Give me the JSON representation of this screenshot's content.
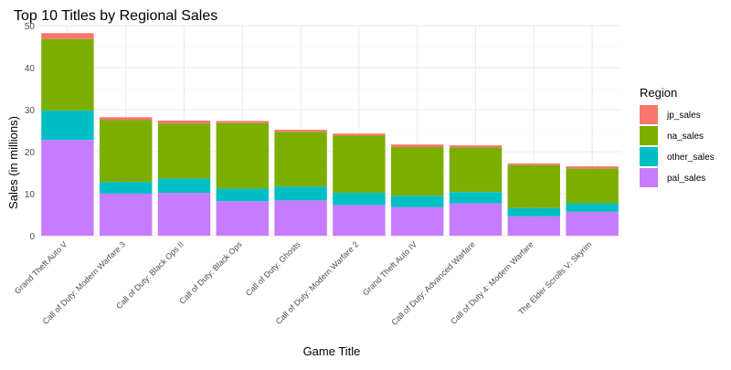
{
  "chart_data": {
    "type": "bar",
    "stacked": true,
    "title": "Top 10 Titles by Regional Sales",
    "xlabel": "Game Title",
    "ylabel": "Sales (in millions)",
    "ylim": [
      0,
      50
    ],
    "yticks": [
      0,
      10,
      20,
      30,
      40,
      50
    ],
    "grid": true,
    "legend_title": "Region",
    "legend_position": "right",
    "categories": [
      "Grand Theft Auto V",
      "Call of Duty: Modern Warfare 3",
      "Call of Duty: Black Ops II",
      "Call of Duty: Black Ops",
      "Call of Duty: Ghosts",
      "Call of Duty: Modern Warfare 2",
      "Grand Theft Auto IV",
      "Call of Duty: Advanced Warfare",
      "Call of Duty 4: Modern Warfare",
      "The Elder Scrolls V: Skyrim"
    ],
    "series": [
      {
        "name": "pal_sales",
        "color": "#C77CFF",
        "values": [
          22.8,
          10.0,
          10.2,
          8.2,
          8.4,
          7.3,
          6.8,
          7.7,
          4.6,
          5.7
        ]
      },
      {
        "name": "other_sales",
        "color": "#00BFC4",
        "values": [
          7.0,
          2.8,
          3.4,
          3.0,
          3.3,
          2.9,
          2.7,
          2.7,
          2.0,
          2.0
        ]
      },
      {
        "name": "na_sales",
        "color": "#7CAE00",
        "values": [
          17.0,
          14.7,
          13.1,
          15.6,
          13.0,
          13.6,
          11.6,
          10.6,
          10.2,
          8.3
        ]
      },
      {
        "name": "jp_sales",
        "color": "#F8766D",
        "values": [
          1.4,
          0.7,
          0.7,
          0.5,
          0.5,
          0.5,
          0.6,
          0.5,
          0.4,
          0.5
        ]
      }
    ],
    "legend_order": [
      "jp_sales",
      "na_sales",
      "other_sales",
      "pal_sales"
    ]
  }
}
